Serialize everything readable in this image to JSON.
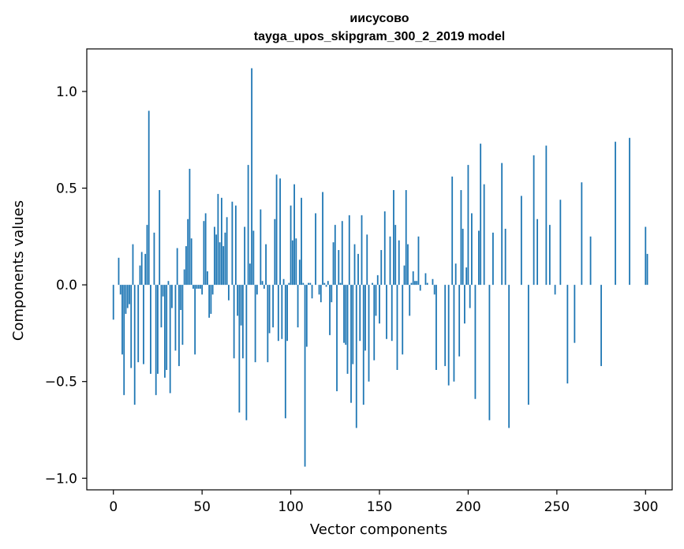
{
  "chart_data": {
    "type": "bar",
    "title": "иисусово",
    "subtitle": "tayga_upos_skipgram_300_2_2019 model",
    "xlabel": "Vector components",
    "ylabel": "Components values",
    "xlim": [
      -15,
      315
    ],
    "ylim": [
      -1.06,
      1.22
    ],
    "xticks": [
      0,
      50,
      100,
      150,
      200,
      250,
      300
    ],
    "yticks": [
      -1.0,
      -0.5,
      0.0,
      0.5,
      1.0
    ],
    "ytick_labels": [
      "−1.0",
      "−0.5",
      "0.0",
      "0.5",
      "1.0"
    ],
    "grid": false,
    "bar_color": "#1f77b4",
    "values": [
      -0.18,
      0.0,
      0.0,
      0.14,
      -0.05,
      -0.36,
      -0.57,
      -0.15,
      -0.12,
      -0.1,
      -0.43,
      0.21,
      -0.62,
      0.0,
      -0.4,
      0.1,
      0.17,
      -0.41,
      0.16,
      0.31,
      0.9,
      -0.46,
      0.0,
      0.27,
      -0.57,
      -0.46,
      0.49,
      -0.22,
      -0.06,
      -0.48,
      -0.44,
      0.02,
      -0.56,
      -0.12,
      0.0,
      -0.34,
      0.19,
      -0.42,
      -0.13,
      -0.31,
      0.08,
      0.2,
      0.34,
      0.6,
      0.24,
      -0.02,
      -0.36,
      -0.02,
      -0.02,
      -0.02,
      -0.05,
      0.33,
      0.37,
      0.07,
      -0.17,
      -0.15,
      -0.05,
      0.3,
      0.26,
      0.47,
      0.22,
      0.45,
      0.2,
      0.27,
      0.35,
      -0.08,
      0.0,
      0.43,
      -0.38,
      0.41,
      -0.16,
      -0.66,
      -0.21,
      -0.38,
      0.3,
      -0.7,
      0.62,
      0.11,
      1.12,
      0.28,
      -0.4,
      -0.05,
      0.0,
      0.39,
      0.02,
      -0.02,
      0.21,
      -0.4,
      -0.25,
      0.0,
      -0.22,
      0.34,
      0.57,
      -0.29,
      0.55,
      -0.28,
      0.03,
      -0.69,
      -0.29,
      0.01,
      0.41,
      0.23,
      0.52,
      0.24,
      -0.22,
      0.13,
      0.45,
      0.01,
      -0.94,
      -0.32,
      0.01,
      0.01,
      -0.07,
      0.0,
      0.37,
      0.0,
      -0.05,
      -0.09,
      0.48,
      0.01,
      -0.01,
      0.02,
      -0.26,
      -0.09,
      0.22,
      0.31,
      -0.55,
      0.18,
      0.01,
      0.33,
      -0.3,
      -0.31,
      -0.46,
      0.36,
      -0.61,
      -0.41,
      0.21,
      -0.74,
      0.16,
      -0.29,
      0.36,
      -0.62,
      -0.34,
      0.26,
      -0.5,
      0.0,
      0.01,
      -0.39,
      -0.16,
      0.05,
      -0.2,
      0.18,
      0.0,
      0.38,
      -0.28,
      0.0,
      0.25,
      -0.29,
      0.49,
      0.31,
      -0.44,
      0.23,
      0.0,
      -0.36,
      0.1,
      0.49,
      0.21,
      -0.16,
      0.01,
      0.07,
      0.02,
      0.02,
      0.25,
      -0.03,
      0.0,
      0.0,
      0.06,
      0.01,
      0.0,
      0.0,
      0.03,
      -0.05,
      -0.44,
      0.0,
      0.0,
      0.0,
      0.0,
      -0.42,
      0.0,
      -0.52,
      0.0,
      0.56,
      -0.5,
      0.11,
      0.0,
      -0.37,
      0.49,
      0.29,
      -0.2,
      0.09,
      0.62,
      -0.12,
      0.37,
      0.0,
      -0.59,
      0.0,
      0.28,
      0.73,
      0.0,
      0.52,
      0.0,
      0.0,
      -0.7,
      0.0,
      0.27,
      0.0,
      0.0,
      0.0,
      0.0,
      0.63,
      0.0,
      0.29,
      0.0,
      -0.74,
      0.0,
      0.0,
      0.0,
      0.0,
      0.0,
      0.0,
      0.46,
      0.0,
      0.0,
      0.0,
      -0.62,
      0.0,
      0.0,
      0.67,
      0.0,
      0.34,
      0.0,
      0.0,
      0.0,
      0.0,
      0.72,
      0.0,
      0.31,
      0.0,
      0.0,
      -0.05,
      0.0,
      0.0,
      0.44,
      0.0,
      0.0,
      0.0,
      -0.51,
      0.0,
      0.0,
      0.0,
      -0.3,
      0.0,
      0.0,
      0.0,
      0.53,
      0.0,
      0.0,
      0.0,
      0.0,
      0.25,
      0.0,
      0.0,
      0.0,
      0.0,
      0.0,
      -0.42,
      0.0,
      0.0,
      0.0,
      0.0,
      0.0,
      0.0,
      0.0,
      0.74,
      0.0,
      0.0,
      0.0,
      0.0,
      0.0,
      0.0,
      0.0,
      0.76,
      0.0,
      0.0,
      0.0,
      0.0,
      0.0,
      0.0,
      0.0,
      0.0,
      0.3,
      0.16,
      0.0,
      0.0,
      0.0,
      0.0
    ]
  }
}
